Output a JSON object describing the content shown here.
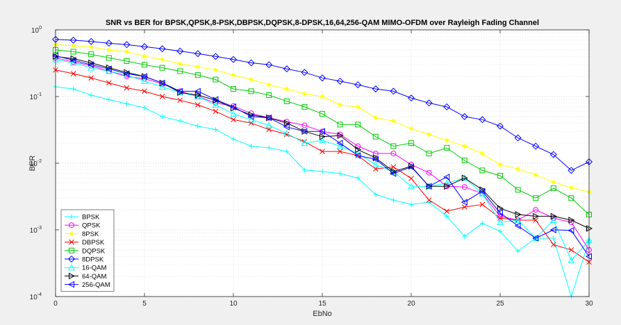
{
  "chart_data": {
    "type": "line",
    "title": "SNR vs BER for BPSK,QPSK,8-PSK,DBPSK,DQPSK,8-DPSK,16,64,256-QAM MIMO-OFDM over Rayleigh Fading Channel",
    "xlabel": "EbNo",
    "ylabel": "BER",
    "xlim": [
      0,
      30
    ],
    "ylim": [
      0.0001,
      1
    ],
    "yscale": "log",
    "grid": true,
    "legend_position": "bottom-left",
    "x_ticks": [
      "0",
      "5",
      "10",
      "15",
      "20",
      "25",
      "30"
    ],
    "y_ticks": [
      {
        "base": "10",
        "exp": "0"
      },
      {
        "base": "10",
        "exp": "-1"
      },
      {
        "base": "10",
        "exp": "-2"
      },
      {
        "base": "10",
        "exp": "-3"
      },
      {
        "base": "10",
        "exp": "-4"
      }
    ],
    "x": [
      0,
      1,
      2,
      3,
      4,
      5,
      6,
      7,
      8,
      9,
      10,
      11,
      12,
      13,
      14,
      15,
      16,
      17,
      18,
      19,
      20,
      21,
      22,
      23,
      24,
      25,
      26,
      27,
      28,
      29,
      30
    ],
    "series": [
      {
        "name": "BPSK",
        "color": "#00ffff",
        "marker": "plus",
        "values": [
          0.14,
          0.13,
          0.105,
          0.09,
          0.078,
          0.068,
          0.05,
          0.043,
          0.036,
          0.032,
          0.023,
          0.018,
          0.017,
          0.015,
          0.0079,
          0.0075,
          0.007,
          0.006,
          0.0034,
          0.0028,
          0.0024,
          0.0026,
          0.0016,
          0.0008,
          0.00125,
          0.00095,
          0.00048,
          0.00075,
          0.00075,
          0.0001,
          0.0007
        ]
      },
      {
        "name": "QPSK",
        "color": "#ff00ff",
        "marker": "circle",
        "values": [
          0.38,
          0.33,
          0.29,
          0.24,
          0.2,
          0.185,
          0.155,
          0.12,
          0.1,
          0.08,
          0.072,
          0.056,
          0.048,
          0.042,
          0.037,
          0.03,
          0.027,
          0.018,
          0.014,
          0.014,
          0.0095,
          0.0072,
          0.0045,
          0.0044,
          0.0035,
          0.0016,
          0.0014,
          0.002,
          0.0015,
          0.0013,
          0.0005
        ]
      },
      {
        "name": "8PSK",
        "color": "#ffff00",
        "marker": "star",
        "values": [
          0.6,
          0.58,
          0.55,
          0.5,
          0.47,
          0.4,
          0.36,
          0.31,
          0.28,
          0.25,
          0.21,
          0.18,
          0.15,
          0.13,
          0.11,
          0.1,
          0.075,
          0.07,
          0.048,
          0.043,
          0.033,
          0.027,
          0.022,
          0.018,
          0.014,
          0.0095,
          0.0082,
          0.0067,
          0.0052,
          0.0043,
          0.0037
        ]
      },
      {
        "name": "DBPSK",
        "color": "#ff0000",
        "marker": "cross",
        "values": [
          0.25,
          0.22,
          0.19,
          0.16,
          0.135,
          0.12,
          0.1,
          0.088,
          0.075,
          0.06,
          0.045,
          0.04,
          0.032,
          0.027,
          0.021,
          0.015,
          0.015,
          0.013,
          0.0082,
          0.0088,
          0.0059,
          0.0028,
          0.0019,
          0.0022,
          0.0024,
          0.0015,
          0.0014,
          0.0014,
          0.0006,
          0.0005,
          0.00033
        ]
      },
      {
        "name": "DQPSK",
        "color": "#00cc00",
        "marker": "square",
        "values": [
          0.5,
          0.47,
          0.43,
          0.38,
          0.34,
          0.3,
          0.27,
          0.24,
          0.21,
          0.18,
          0.13,
          0.12,
          0.105,
          0.085,
          0.07,
          0.055,
          0.038,
          0.038,
          0.025,
          0.018,
          0.02,
          0.014,
          0.017,
          0.011,
          0.0078,
          0.0065,
          0.004,
          0.003,
          0.0042,
          0.003,
          0.0017
        ]
      },
      {
        "name": "8DPSK",
        "color": "#0000ff",
        "marker": "diamond",
        "values": [
          0.72,
          0.7,
          0.67,
          0.63,
          0.6,
          0.56,
          0.52,
          0.48,
          0.44,
          0.4,
          0.36,
          0.32,
          0.3,
          0.26,
          0.23,
          0.19,
          0.17,
          0.15,
          0.13,
          0.12,
          0.095,
          0.08,
          0.07,
          0.05,
          0.045,
          0.036,
          0.024,
          0.018,
          0.0135,
          0.0078,
          0.0105
        ]
      },
      {
        "name": "16-QAM",
        "color": "#00ffff",
        "marker": "triangle-up",
        "values": [
          0.36,
          0.32,
          0.27,
          0.24,
          0.21,
          0.17,
          0.14,
          0.115,
          0.1,
          0.075,
          0.055,
          0.045,
          0.037,
          0.028,
          0.02,
          0.022,
          0.018,
          0.014,
          0.0095,
          0.0075,
          0.0045,
          0.0045,
          0.005,
          0.006,
          0.0035,
          0.0013,
          0.0014,
          0.00075,
          0.0014,
          0.00035,
          0.0007
        ]
      },
      {
        "name": "64-QAM",
        "color": "#000000",
        "marker": "triangle-right",
        "values": [
          0.4,
          0.37,
          0.32,
          0.27,
          0.23,
          0.2,
          0.16,
          0.115,
          0.105,
          0.088,
          0.067,
          0.053,
          0.048,
          0.04,
          0.03,
          0.025,
          0.026,
          0.016,
          0.012,
          0.0075,
          0.009,
          0.0045,
          0.0045,
          0.006,
          0.004,
          0.0021,
          0.0017,
          0.0016,
          0.0016,
          0.0014,
          0.00105
        ]
      },
      {
        "name": "256-QAM",
        "color": "#0000ff",
        "marker": "triangle-left",
        "values": [
          0.41,
          0.35,
          0.3,
          0.26,
          0.22,
          0.2,
          0.16,
          0.12,
          0.12,
          0.09,
          0.07,
          0.05,
          0.048,
          0.035,
          0.03,
          0.03,
          0.02,
          0.013,
          0.0115,
          0.007,
          0.0088,
          0.0045,
          0.0062,
          0.0026,
          0.0038,
          0.0018,
          0.00115,
          0.00075,
          0.001,
          0.00098,
          0.0004
        ]
      }
    ]
  }
}
